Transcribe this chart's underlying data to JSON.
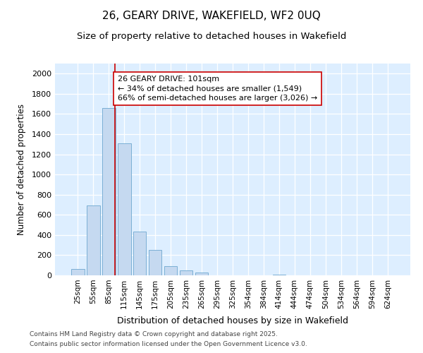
{
  "title": "26, GEARY DRIVE, WAKEFIELD, WF2 0UQ",
  "subtitle": "Size of property relative to detached houses in Wakefield",
  "xlabel": "Distribution of detached houses by size in Wakefield",
  "ylabel": "Number of detached properties",
  "categories": [
    "25sqm",
    "55sqm",
    "85sqm",
    "115sqm",
    "145sqm",
    "175sqm",
    "205sqm",
    "235sqm",
    "265sqm",
    "295sqm",
    "325sqm",
    "354sqm",
    "384sqm",
    "414sqm",
    "444sqm",
    "474sqm",
    "504sqm",
    "534sqm",
    "564sqm",
    "594sqm",
    "624sqm"
  ],
  "values": [
    65,
    695,
    1660,
    1310,
    435,
    255,
    90,
    50,
    25,
    0,
    0,
    0,
    0,
    10,
    0,
    0,
    0,
    0,
    0,
    0,
    0
  ],
  "bar_color": "#c5d9f0",
  "bar_edgecolor": "#7bafd4",
  "plot_bg_color": "#ddeeff",
  "fig_bg_color": "#ffffff",
  "vline_color": "#cc0000",
  "vline_x": 2.42,
  "annotation_text": "26 GEARY DRIVE: 101sqm\n← 34% of detached houses are smaller (1,549)\n66% of semi-detached houses are larger (3,026) →",
  "annotation_box_edgecolor": "#cc0000",
  "annotation_box_facecolor": "#ffffff",
  "ylim": [
    0,
    2100
  ],
  "yticks": [
    0,
    200,
    400,
    600,
    800,
    1000,
    1200,
    1400,
    1600,
    1800,
    2000
  ],
  "footer_line1": "Contains HM Land Registry data © Crown copyright and database right 2025.",
  "footer_line2": "Contains public sector information licensed under the Open Government Licence v3.0."
}
